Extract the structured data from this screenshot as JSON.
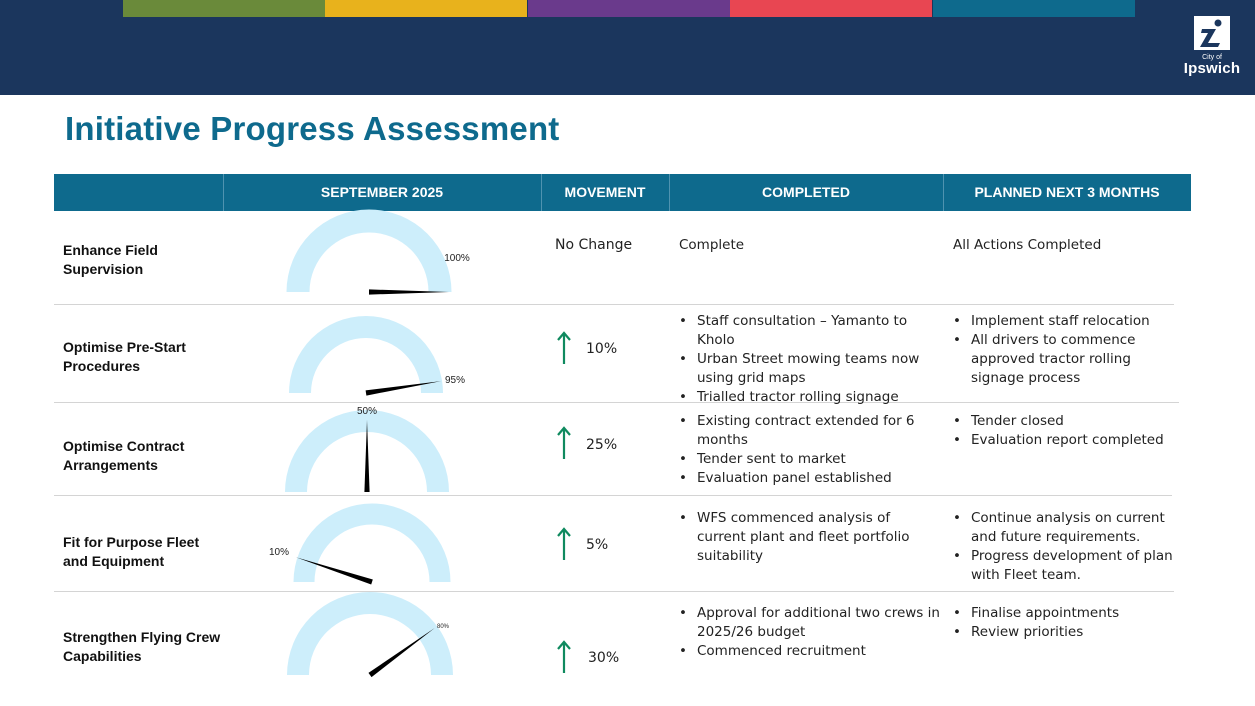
{
  "brand": {
    "city_label": "City of",
    "name": "Ipswich",
    "colors": [
      "#6a8a3a",
      "#e8b21c",
      "#6a3a8c",
      "#e84652",
      "#0e6a8d"
    ],
    "header_bg": "#1b365d"
  },
  "title": "Initiative Progress Assessment",
  "columns": [
    "",
    "SEPTEMBER 2025",
    "MOVEMENT",
    "COMPLETED",
    "PLANNED NEXT 3 MONTHS"
  ],
  "rows": [
    {
      "name": "Enhance Field Supervision",
      "progress": 100,
      "progress_label": "100%",
      "movement": "No Change",
      "completed": [
        "Complete"
      ],
      "planned": [
        "All Actions Completed"
      ]
    },
    {
      "name": "Optimise Pre-Start Procedures",
      "progress": 95,
      "progress_label": "95%",
      "movement": "10%",
      "completed": [
        "Staff consultation – Yamanto to Kholo",
        "Urban Street mowing teams now using grid maps",
        "Trialled tractor rolling signage"
      ],
      "planned": [
        "Implement staff relocation",
        "All drivers to commence approved tractor rolling signage process"
      ]
    },
    {
      "name": "Optimise Contract Arrangements",
      "progress": 50,
      "progress_label": "50%",
      "movement": "25%",
      "completed": [
        "Existing contract extended for 6 months",
        "Tender sent to market",
        "Evaluation panel established"
      ],
      "planned": [
        "Tender closed",
        "Evaluation report completed"
      ]
    },
    {
      "name": "Fit for Purpose Fleet and Equipment",
      "progress": 10,
      "progress_label": "10%",
      "movement": "5%",
      "completed": [
        "WFS commenced analysis of current plant and fleet portfolio suitability"
      ],
      "planned": [
        "Continue analysis on current and future requirements.",
        "Progress development of plan with Fleet team."
      ]
    },
    {
      "name": "Strengthen Flying Crew Capabilities",
      "progress": 80,
      "progress_label": "80%",
      "movement": "30%",
      "completed": [
        "Approval for additional two crews in 2025/26 budget",
        "Commenced recruitment"
      ],
      "planned": [
        "Finalise appointments",
        "Review priorities"
      ]
    }
  ],
  "gauge_colors": {
    "track": "#cdeefb",
    "needle": "#000000"
  },
  "arrow_color": "#0f8a5f",
  "icons": {
    "up": "arrow-up-icon",
    "logo": "ipswich-logo-icon"
  }
}
